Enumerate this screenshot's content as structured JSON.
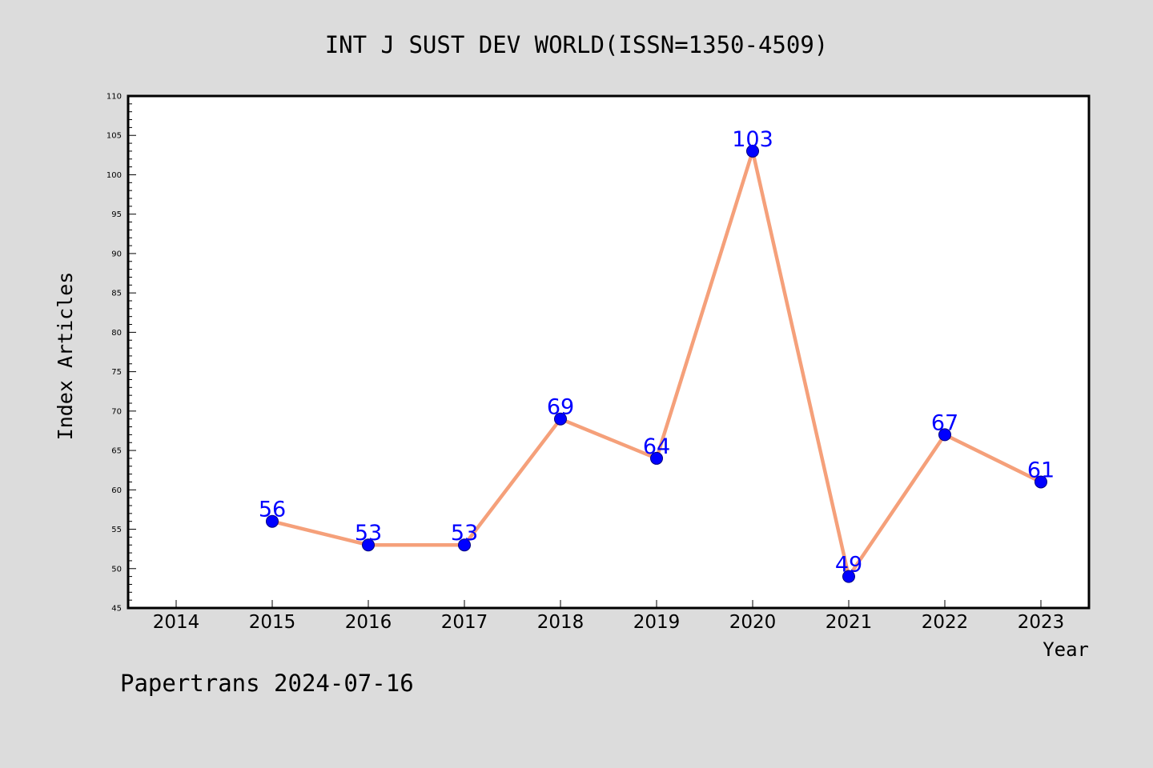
{
  "chart_data": {
    "type": "line",
    "title": "INT J SUST DEV WORLD(ISSN=1350-4509)",
    "xlabel": "Year",
    "ylabel": "Index Articles",
    "footer": "Papertrans 2024-07-16",
    "x_ticks": [
      "2014",
      "2015",
      "2016",
      "2017",
      "2018",
      "2019",
      "2020",
      "2021",
      "2022",
      "2023"
    ],
    "xlim": [
      2013.5,
      2023.5
    ],
    "ylim": [
      45,
      110
    ],
    "y_major_ticks": [
      45,
      50,
      55,
      60,
      65,
      70,
      75,
      80,
      85,
      90,
      95,
      100,
      105,
      110
    ],
    "y_minor_step": 1,
    "grid": false,
    "series": [
      {
        "x": [
          2015,
          2016,
          2017,
          2018,
          2019,
          2020,
          2021,
          2022,
          2023
        ],
        "values": [
          56,
          53,
          53,
          69,
          64,
          103,
          49,
          67,
          61
        ],
        "labels": [
          "56",
          "53",
          "53",
          "69",
          "64",
          "103",
          "49",
          "67",
          "61"
        ]
      }
    ]
  },
  "colors": {
    "background": "#dcdcdc",
    "plot_background": "#ffffff",
    "line": "#f5a07a",
    "marker": "#0000ff",
    "marker_stroke": "#000080",
    "data_label": "#0000ff",
    "text": "#000000"
  }
}
